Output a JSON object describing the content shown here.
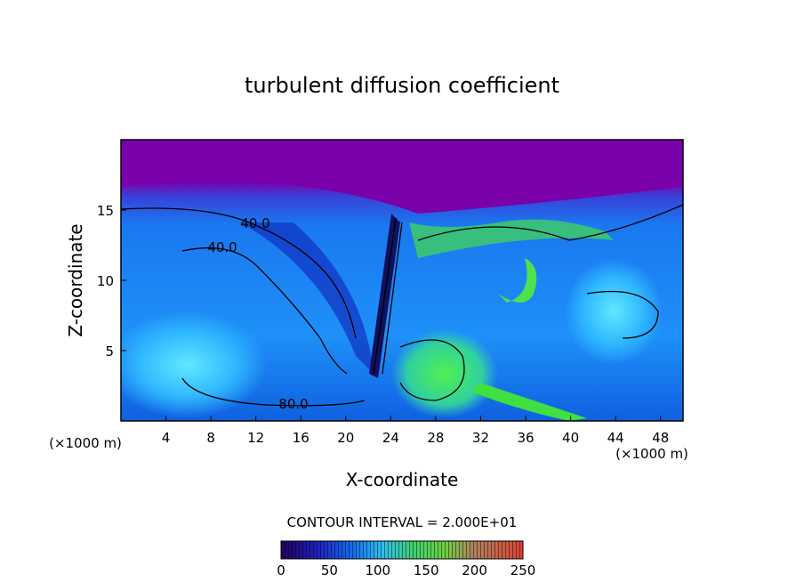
{
  "chart_data": {
    "type": "contour",
    "title": "turbulent diffusion coefficient",
    "xlabel": "X-coordinate",
    "ylabel": "Z-coordinate",
    "x_unit_left": "(×1000 m)",
    "x_unit_right": "(×1000 m)",
    "xlim": [
      0,
      50
    ],
    "xticks": [
      4,
      8,
      12,
      16,
      20,
      24,
      28,
      32,
      36,
      40,
      44,
      48
    ],
    "ylim": [
      0,
      20
    ],
    "yticks": [
      5,
      10,
      15
    ],
    "contour_interval": "CONTOUR INTERVAL = 2.000E+01",
    "contour_labels": [
      {
        "value": 40,
        "label": "40.0"
      },
      {
        "value": 40,
        "label": "40.0"
      },
      {
        "value": 80,
        "label": "80.0"
      }
    ],
    "colorbar": {
      "lim": [
        0,
        250
      ],
      "ticks": [
        0,
        50,
        100,
        150,
        200,
        250
      ]
    }
  }
}
